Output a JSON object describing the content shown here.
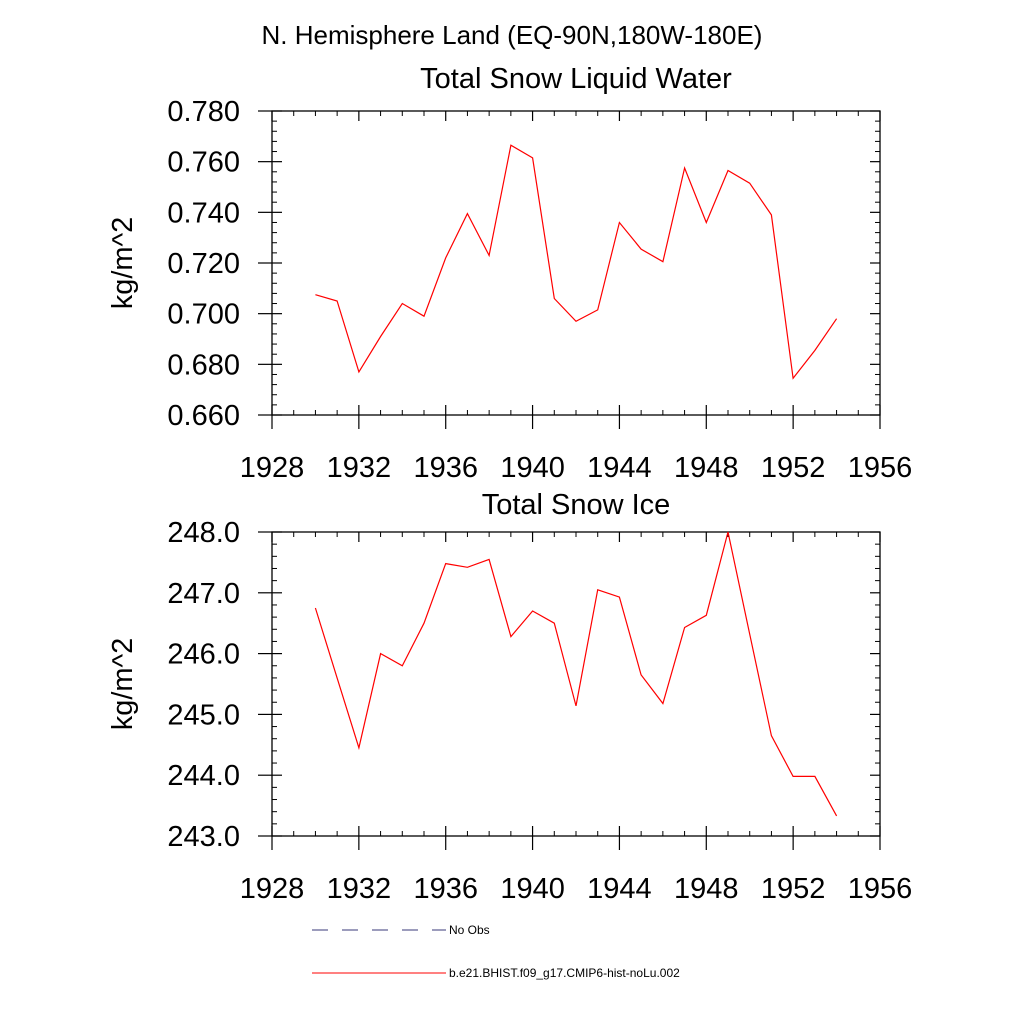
{
  "figure": {
    "main_title": "N. Hemisphere Land (EQ-90N,180W-180E)"
  },
  "chart_data": [
    {
      "type": "line",
      "title": "Total Snow Liquid Water",
      "xlabel": "",
      "ylabel": "kg/m^2",
      "xlim": [
        1928,
        1956
      ],
      "ylim": [
        0.66,
        0.78
      ],
      "xticks": [
        "1928",
        "1932",
        "1936",
        "1940",
        "1944",
        "1948",
        "1952",
        "1956"
      ],
      "yticks": [
        "0.660",
        "0.680",
        "0.700",
        "0.720",
        "0.740",
        "0.760",
        "0.780"
      ],
      "series": [
        {
          "name": "b.e21.BHIST.f09_g17.CMIP6-hist-noLu.002",
          "color": "#ff0000",
          "x": [
            1930,
            1931,
            1932,
            1933,
            1934,
            1935,
            1936,
            1937,
            1938,
            1939,
            1940,
            1941,
            1942,
            1943,
            1944,
            1945,
            1946,
            1947,
            1948,
            1949,
            1950,
            1951,
            1952,
            1953,
            1954
          ],
          "values": [
            0.7075,
            0.705,
            0.677,
            0.691,
            0.704,
            0.699,
            0.722,
            0.7395,
            0.723,
            0.7665,
            0.7615,
            0.706,
            0.697,
            0.7015,
            0.736,
            0.7255,
            0.7205,
            0.7575,
            0.736,
            0.7565,
            0.7515,
            0.739,
            0.6745,
            0.6855,
            0.698
          ]
        }
      ]
    },
    {
      "type": "line",
      "title": "Total Snow Ice",
      "xlabel": "",
      "ylabel": "kg/m^2",
      "xlim": [
        1928,
        1956
      ],
      "ylim": [
        243.0,
        248.0
      ],
      "xticks": [
        "1928",
        "1932",
        "1936",
        "1940",
        "1944",
        "1948",
        "1952",
        "1956"
      ],
      "yticks": [
        "243.0",
        "244.0",
        "245.0",
        "246.0",
        "247.0",
        "248.0"
      ],
      "series": [
        {
          "name": "b.e21.BHIST.f09_g17.CMIP6-hist-noLu.002",
          "color": "#ff0000",
          "x": [
            1930,
            1931,
            1932,
            1933,
            1934,
            1935,
            1936,
            1937,
            1938,
            1939,
            1940,
            1941,
            1942,
            1943,
            1944,
            1945,
            1946,
            1947,
            1948,
            1949,
            1950,
            1951,
            1952,
            1953,
            1954
          ],
          "values": [
            246.75,
            245.6,
            244.45,
            246.0,
            245.8,
            246.5,
            247.48,
            247.42,
            247.55,
            246.28,
            246.7,
            246.5,
            245.14,
            247.05,
            246.93,
            245.65,
            245.18,
            246.43,
            246.63,
            248.0,
            246.32,
            244.65,
            243.98,
            243.98,
            243.33
          ]
        }
      ]
    }
  ],
  "legend": {
    "items": [
      {
        "label": "No Obs",
        "style": "dashed",
        "color": "#3a3a7a"
      },
      {
        "label": "b.e21.BHIST.f09_g17.CMIP6-hist-noLu.002",
        "style": "solid",
        "color": "#ff0000"
      }
    ]
  }
}
